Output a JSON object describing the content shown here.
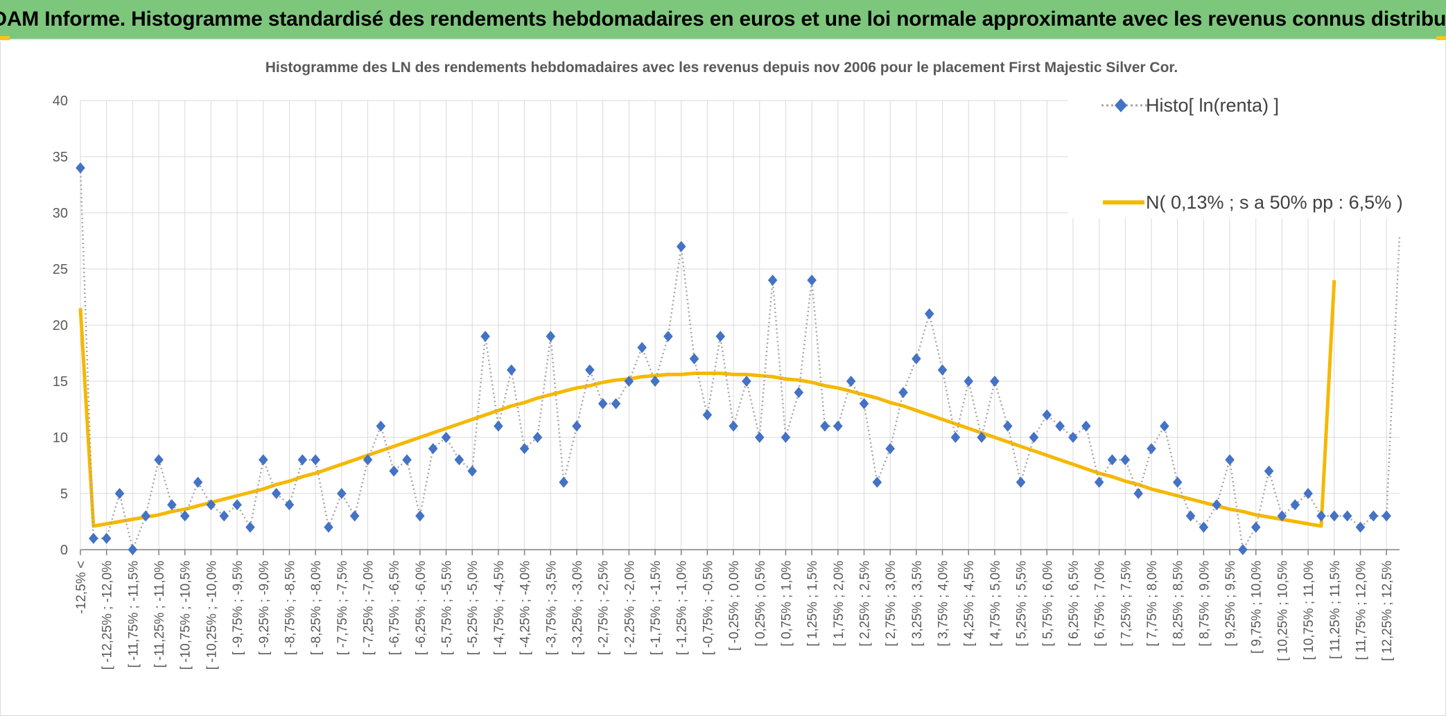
{
  "banner": {
    "title": "ADAM Informe. Histogramme standardisé des rendements hebdomadaires en euros et une loi normale approximante avec les revenus connus distribués"
  },
  "colors": {
    "banner_bg": "#7dc77c",
    "histogram_marker": "#4472c4",
    "histogram_line": "#a6a6a6",
    "normal_curve": "#f5b800",
    "grid": "#d9d9d9",
    "axis_text": "#595959"
  },
  "chart_data": {
    "type": "line",
    "title": "Histogramme des LN des rendements hebdomadaires avec les revenus depuis nov 2006 pour le placement First Majestic Silver Cor.",
    "xlabel": "",
    "ylabel": "",
    "ylim": [
      0,
      40
    ],
    "yticks": [
      0,
      5,
      10,
      15,
      20,
      25,
      30,
      35,
      40
    ],
    "grid": true,
    "legend_position": "top-right",
    "x_tick_labels": [
      "-12,5% <",
      "[ -12,25% ; -12,0%",
      "[ -11,75% ; -11,5%",
      "[ -11,25% ; -11,0%",
      "[ -10,75% ; -10,5%",
      "[ -10,25% ; -10,0%",
      "[ -9,75% ; -9,5%",
      "[ -9,25% ; -9,0%",
      "[ -8,75% ; -8,5%",
      "[ -8,25% ; -8,0%",
      "[ -7,75% ; -7,5%",
      "[ -7,25% ; -7,0%",
      "[ -6,75% ; -6,5%",
      "[ -6,25% ; -6,0%",
      "[ -5,75% ; -5,5%",
      "[ -5,25% ; -5,0%",
      "[ -4,75% ; -4,5%",
      "[ -4,25% ; -4,0%",
      "[ -3,75% ; -3,5%",
      "[ -3,25% ; -3,0%",
      "[ -2,75% ; -2,5%",
      "[ -2,25% ; -2,0%",
      "[ -1,75% ; -1,5%",
      "[ -1,25% ; -1,0%",
      "[ -0,75% ; -0,5%",
      "[ -0,25% ; 0,0%",
      "[ 0,25% ; 0,5%",
      "[ 0,75% ; 1,0%",
      "[ 1,25% ; 1,5%",
      "[ 1,75% ; 2,0%",
      "[ 2,25% ; 2,5%",
      "[ 2,75% ; 3,0%",
      "[ 3,25% ; 3,5%",
      "[ 3,75% ; 4,0%",
      "[ 4,25% ; 4,5%",
      "[ 4,75% ; 5,0%",
      "[ 5,25% ; 5,5%",
      "[ 5,75% ; 6,0%",
      "[ 6,25% ; 6,5%",
      "[ 6,75% ; 7,0%",
      "[ 7,25% ; 7,5%",
      "[ 7,75% ; 8,0%",
      "[ 8,25% ; 8,5%",
      "[ 8,75% ; 9,0%",
      "[ 9,25% ; 9,5%",
      "[ 9,75% ; 10,0%",
      "[ 10,25% ; 10,5%",
      "[ 10,75% ; 11,0%",
      "[ 11,25% ; 11,5%",
      "[ 11,75% ; 12,0%",
      "[ 12,25% ; 12,5%"
    ],
    "series": [
      {
        "name": "Histo[ ln(renta) ]",
        "style": "dotted line with diamond markers",
        "values": [
          34,
          1,
          1,
          5,
          0,
          3,
          8,
          4,
          3,
          6,
          4,
          3,
          4,
          2,
          8,
          5,
          4,
          8,
          8,
          2,
          5,
          3,
          8,
          11,
          7,
          8,
          3,
          9,
          10,
          8,
          7,
          19,
          11,
          16,
          9,
          10,
          19,
          6,
          11,
          16,
          13,
          13,
          15,
          18,
          15,
          19,
          27,
          17,
          12,
          19,
          11,
          15,
          10,
          24,
          10,
          14,
          24,
          11,
          11,
          15,
          13,
          6,
          9,
          14,
          17,
          21,
          16,
          10,
          15,
          10,
          15,
          11,
          6,
          10,
          12,
          11,
          10,
          11,
          6,
          8,
          8,
          5,
          9,
          11,
          6,
          3,
          2,
          4,
          8,
          0,
          2,
          7,
          3,
          4,
          5,
          3,
          3,
          3,
          2,
          3,
          3,
          28
        ]
      },
      {
        "name": "N( 0,13% ; s a 50% pp : 6,5% )",
        "style": "solid line",
        "values": [
          21.5,
          2.1,
          2.3,
          2.5,
          2.7,
          2.9,
          3.1,
          3.4,
          3.6,
          3.9,
          4.2,
          4.5,
          4.8,
          5.1,
          5.4,
          5.8,
          6.1,
          6.5,
          6.8,
          7.2,
          7.6,
          8.0,
          8.4,
          8.8,
          9.2,
          9.6,
          10.0,
          10.4,
          10.8,
          11.2,
          11.6,
          12.0,
          12.4,
          12.8,
          13.1,
          13.5,
          13.8,
          14.1,
          14.4,
          14.6,
          14.9,
          15.1,
          15.2,
          15.4,
          15.5,
          15.6,
          15.6,
          15.7,
          15.7,
          15.7,
          15.6,
          15.6,
          15.5,
          15.4,
          15.2,
          15.1,
          14.9,
          14.6,
          14.4,
          14.1,
          13.8,
          13.5,
          13.1,
          12.8,
          12.4,
          12.0,
          11.6,
          11.2,
          10.8,
          10.4,
          10.0,
          9.6,
          9.2,
          8.8,
          8.4,
          8.0,
          7.6,
          7.2,
          6.8,
          6.5,
          6.1,
          5.8,
          5.4,
          5.1,
          4.8,
          4.5,
          4.2,
          3.9,
          3.6,
          3.4,
          3.1,
          2.9,
          2.7,
          2.5,
          2.3,
          2.1,
          24.0
        ]
      }
    ]
  }
}
